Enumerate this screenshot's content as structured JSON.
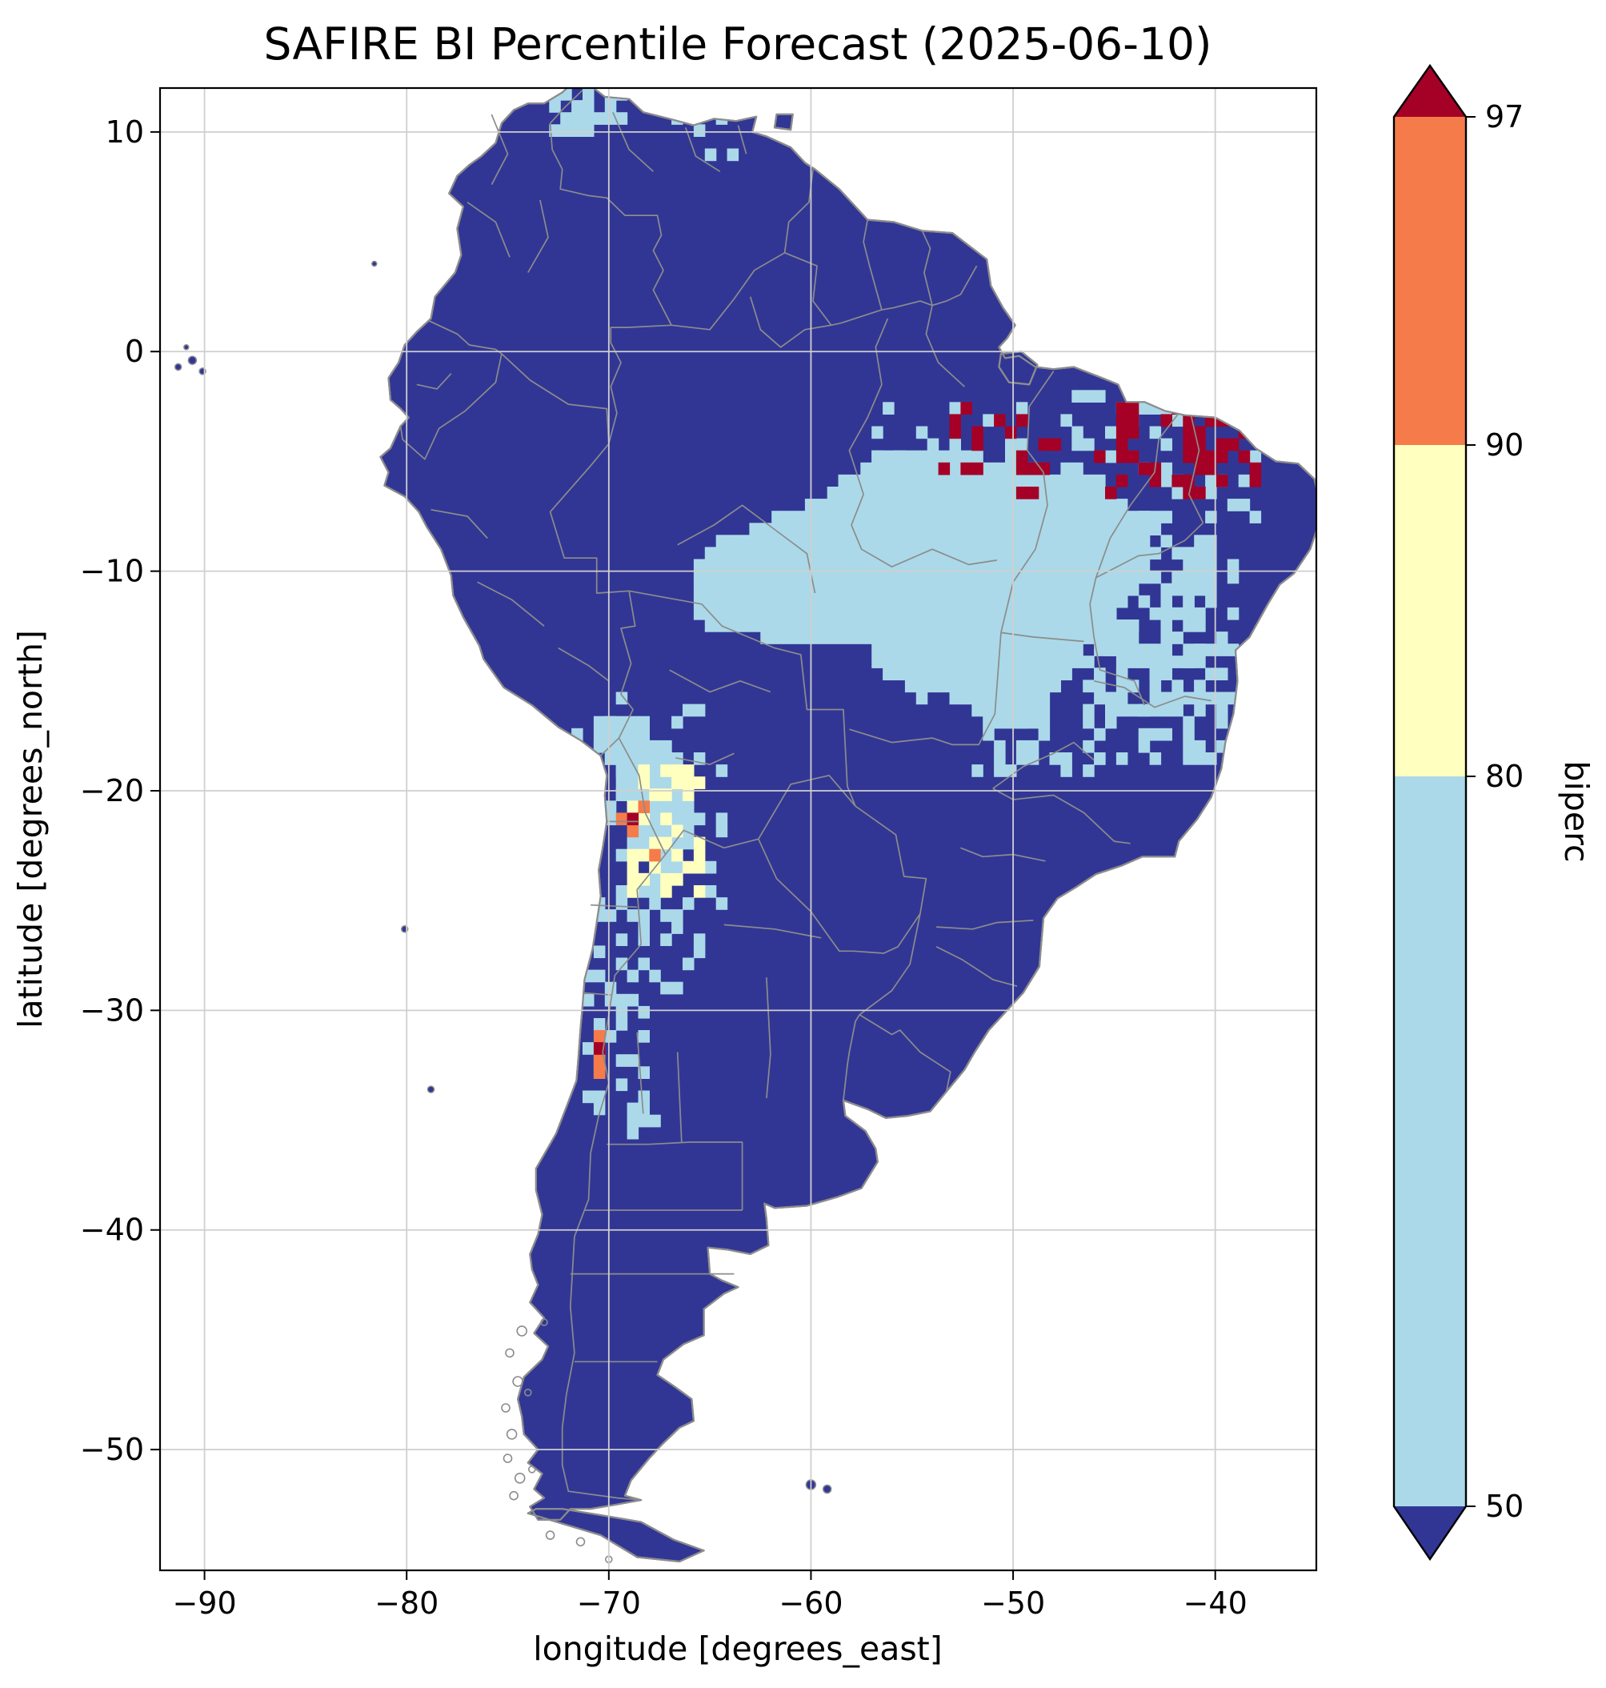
{
  "figure": {
    "title": "SAFIRE BI Percentile Forecast (2025-06-10)"
  },
  "axes": {
    "xlabel": "longitude [degrees_east]",
    "ylabel": "latitude [degrees_north]",
    "x_ticks": [
      -90,
      -80,
      -70,
      -60,
      -50,
      -40
    ],
    "y_ticks": [
      10,
      0,
      -10,
      -20,
      -30,
      -40,
      -50
    ]
  },
  "colorbar": {
    "label": "biperc",
    "tick_labels": [
      "97",
      "90",
      "80",
      "50"
    ],
    "boundaries": [
      50,
      80,
      90,
      97
    ],
    "extend": "both",
    "segment_classes": [
      "p90_97",
      "p80_90",
      "p50_80"
    ],
    "over_class": "p97plus",
    "under_class": "lt50"
  },
  "map": {
    "land_class": "lt50",
    "ocean_color": "#ffffff",
    "border_color": "#8c8c8c",
    "grid_color": "#cfcfcf",
    "frame_color": "#000000"
  },
  "chart_data": {
    "type": "heatmap",
    "title": "SAFIRE BI Percentile Forecast (2025-06-10)",
    "xlabel": "longitude [degrees_east]",
    "ylabel": "latitude [degrees_north]",
    "variable": "biperc",
    "x_range": [
      -92.2,
      -35.0
    ],
    "y_range": [
      -55.5,
      12.0
    ],
    "x_ticks": [
      -90,
      -80,
      -70,
      -60,
      -50,
      -40
    ],
    "y_ticks": [
      10,
      0,
      -10,
      -20,
      -30,
      -40,
      -50
    ],
    "cell_size_deg": 0.55,
    "base_class": "lt50",
    "classes": {
      "lt50": {
        "label": "below 50",
        "color": "#313695"
      },
      "p50_80": {
        "label": "50-80",
        "color": "#abd9e9"
      },
      "p80_90": {
        "label": "80-90",
        "color": "#ffffbf"
      },
      "p90_97": {
        "label": "90-97",
        "color": "#f57c4a"
      },
      "p97plus": {
        "label": "above 97",
        "color": "#a50026"
      }
    },
    "regions": [
      {
        "class": "p50_80",
        "name": "central-brazil",
        "polygon": [
          [
            -65.8,
            -9.8
          ],
          [
            -64.9,
            -8.9
          ],
          [
            -63.8,
            -8.2
          ],
          [
            -62.4,
            -8.0
          ],
          [
            -61.2,
            -7.1
          ],
          [
            -59.9,
            -6.9
          ],
          [
            -58.9,
            -5.9
          ],
          [
            -57.7,
            -5.6
          ],
          [
            -56.7,
            -4.6
          ],
          [
            -55.3,
            -4.8
          ],
          [
            -54.2,
            -4.0
          ],
          [
            -53.0,
            -4.7
          ],
          [
            -51.7,
            -4.5
          ],
          [
            -50.5,
            -5.2
          ],
          [
            -49.3,
            -4.9
          ],
          [
            -48.2,
            -5.5
          ],
          [
            -47.1,
            -5.1
          ],
          [
            -46.0,
            -5.6
          ],
          [
            -45.0,
            -6.3
          ],
          [
            -44.2,
            -7.2
          ],
          [
            -43.4,
            -7.1
          ],
          [
            -42.9,
            -8.2
          ],
          [
            -43.4,
            -9.3
          ],
          [
            -43.0,
            -10.2
          ],
          [
            -43.9,
            -11.1
          ],
          [
            -44.7,
            -11.6
          ],
          [
            -45.2,
            -12.6
          ],
          [
            -46.2,
            -13.1
          ],
          [
            -46.7,
            -14.3
          ],
          [
            -47.7,
            -15.0
          ],
          [
            -48.4,
            -16.3
          ],
          [
            -49.5,
            -17.0
          ],
          [
            -50.5,
            -16.5
          ],
          [
            -51.4,
            -17.0
          ],
          [
            -52.4,
            -16.1
          ],
          [
            -53.4,
            -15.6
          ],
          [
            -54.5,
            -15.8
          ],
          [
            -55.5,
            -15.0
          ],
          [
            -56.5,
            -14.6
          ],
          [
            -57.1,
            -13.6
          ],
          [
            -58.2,
            -13.1
          ],
          [
            -59.3,
            -13.5
          ],
          [
            -60.5,
            -13.0
          ],
          [
            -61.6,
            -13.5
          ],
          [
            -62.7,
            -13.0
          ],
          [
            -63.6,
            -12.5
          ],
          [
            -64.7,
            -12.8
          ],
          [
            -65.7,
            -12.0
          ],
          [
            -66.0,
            -11.0
          ],
          [
            -65.5,
            -10.4
          ]
        ]
      },
      {
        "class": "p50_80",
        "name": "altiplano",
        "polygon": [
          [
            -70.7,
            -16.9
          ],
          [
            -69.8,
            -16.3
          ],
          [
            -68.9,
            -16.6
          ],
          [
            -68.1,
            -17.3
          ],
          [
            -67.2,
            -17.9
          ],
          [
            -66.4,
            -18.7
          ],
          [
            -65.8,
            -19.8
          ],
          [
            -65.6,
            -21.0
          ],
          [
            -65.9,
            -22.3
          ],
          [
            -66.3,
            -23.5
          ],
          [
            -67.3,
            -24.0
          ],
          [
            -68.1,
            -23.2
          ],
          [
            -68.7,
            -22.0
          ],
          [
            -69.2,
            -20.7
          ],
          [
            -69.7,
            -19.5
          ],
          [
            -70.2,
            -18.5
          ],
          [
            -70.9,
            -17.8
          ]
        ]
      }
    ],
    "speckle_zones": [
      {
        "class": "p50_80",
        "name": "bahia-interior",
        "lon": [
          -46.5,
          -39.8
        ],
        "lat": [
          -18.0,
          -8.8
        ],
        "density": 0.42,
        "seed": 7
      },
      {
        "class": "p50_80",
        "name": "bahia-core",
        "lon": [
          -45.6,
          -41.0
        ],
        "lat": [
          -15.6,
          -10.0
        ],
        "density": 0.45,
        "seed": 8
      },
      {
        "class": "p50_80",
        "name": "north-fringe-west",
        "lon": [
          -57.5,
          -50.0
        ],
        "lat": [
          -4.3,
          -2.8
        ],
        "density": 0.18,
        "seed": 9
      },
      {
        "class": "p50_80",
        "name": "north-fringe-east",
        "lon": [
          -50.0,
          -41.5
        ],
        "lat": [
          -4.4,
          -2.2
        ],
        "density": 0.22,
        "seed": 10
      },
      {
        "class": "p50_80",
        "name": "ceara-mix",
        "lon": [
          -43.5,
          -38.8
        ],
        "lat": [
          -6.8,
          -4.6
        ],
        "density": 0.25,
        "seed": 25
      },
      {
        "class": "p50_80",
        "name": "maracaibo-coast",
        "lon": [
          -72.6,
          -69.8
        ],
        "lat": [
          10.6,
          12.0
        ],
        "density": 0.6,
        "seed": 11
      },
      {
        "class": "p50_80",
        "name": "venezuela-llanos",
        "lon": [
          -67.2,
          -64.6
        ],
        "lat": [
          9.4,
          10.8
        ],
        "density": 0.15,
        "seed": 12
      },
      {
        "class": "p50_80",
        "name": "goias-fringe",
        "lon": [
          -52.0,
          -46.0
        ],
        "lat": [
          -18.5,
          -16.8
        ],
        "density": 0.2,
        "seed": 13
      },
      {
        "class": "p50_80",
        "name": "andes-north-chain",
        "lon": [
          -70.6,
          -66.8
        ],
        "lat": [
          -28.6,
          -23.8
        ],
        "density": 0.3,
        "seed": 14
      },
      {
        "class": "p50_80",
        "name": "andes-south-chain",
        "lon": [
          -71.2,
          -68.6
        ],
        "lat": [
          -34.8,
          -28.6
        ],
        "density": 0.28,
        "seed": 15
      },
      {
        "class": "p50_80",
        "name": "altiplano-fringe",
        "lon": [
          -71.5,
          -64.8
        ],
        "lat": [
          -24.5,
          -15.8
        ],
        "density": 0.12,
        "seed": 17
      },
      {
        "class": "p50_80",
        "name": "mendoza-tucuman",
        "cells": [
          [
            -68.9,
            -34.7
          ],
          [
            -68.4,
            -35.1
          ],
          [
            -69.0,
            -35.3
          ],
          [
            -68.2,
            -34.4
          ],
          [
            -67.8,
            -34.9
          ],
          [
            -65.5,
            -26.7
          ],
          [
            -65.3,
            -27.3
          ]
        ]
      },
      {
        "class": "p80_90",
        "name": "altiplano-core",
        "lon": [
          -68.6,
          -65.9
        ],
        "lat": [
          -23.8,
          -18.9
        ],
        "density": 0.45,
        "seed": 16
      },
      {
        "class": "p90_97",
        "name": "andes-orange",
        "cells": [
          [
            -68.4,
            -20.9
          ],
          [
            -68.7,
            -21.7
          ],
          [
            -69.2,
            -21.2
          ],
          [
            -68.0,
            -22.8
          ],
          [
            -70.5,
            -31.3
          ],
          [
            -70.3,
            -32.1
          ],
          [
            -70.6,
            -32.8
          ]
        ]
      },
      {
        "class": "p97plus",
        "name": "andes-red",
        "cells": [
          [
            -69.0,
            -21.4
          ],
          [
            -70.4,
            -31.7
          ]
        ]
      },
      {
        "class": "p97plus",
        "name": "red-west-cluster",
        "lon": [
          -53.5,
          -49.5
        ],
        "lat": [
          -4.8,
          -2.6
        ],
        "density": 0.3,
        "seed": 21
      },
      {
        "class": "p97plus",
        "name": "red-mid",
        "lon": [
          -49.5,
          -44.5
        ],
        "lat": [
          -6.2,
          -3.0
        ],
        "density": 0.12,
        "seed": 22
      },
      {
        "class": "p97plus",
        "name": "red-east",
        "lon": [
          -44.5,
          -38.6
        ],
        "lat": [
          -5.8,
          -2.6
        ],
        "density": 0.3,
        "seed": 23
      },
      {
        "class": "p97plus",
        "name": "red-ceara-core",
        "lon": [
          -41.5,
          -39.2
        ],
        "lat": [
          -5.0,
          -3.2
        ],
        "density": 0.5,
        "seed": 24
      }
    ]
  }
}
